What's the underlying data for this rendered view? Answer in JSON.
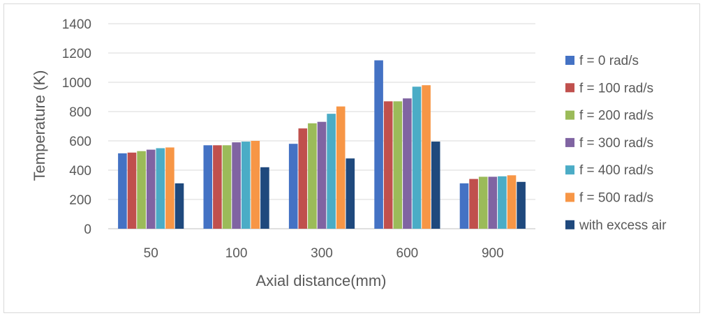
{
  "chart_data": {
    "type": "bar",
    "title": "",
    "xlabel": "Axial distance(mm)",
    "ylabel": "Temperature (K)",
    "ylim": [
      0,
      1400
    ],
    "yticks": [
      "0",
      "200",
      "400",
      "600",
      "800",
      "1000",
      "1200",
      "1400"
    ],
    "grid": true,
    "legend_position": "right",
    "categories": [
      "50",
      "100",
      "300",
      "600",
      "900"
    ],
    "series": [
      {
        "name": "f = 0 rad/s",
        "color": "#4472c4",
        "values": [
          515,
          570,
          580,
          1150,
          310
        ]
      },
      {
        "name": "f = 100 rad/s",
        "color": "#c0504d",
        "values": [
          520,
          570,
          685,
          870,
          340
        ]
      },
      {
        "name": "f = 200 rad/s",
        "color": "#9bbb59",
        "values": [
          530,
          570,
          720,
          870,
          355
        ]
      },
      {
        "name": "f = 300 rad/s",
        "color": "#8064a2",
        "values": [
          540,
          590,
          730,
          890,
          355
        ]
      },
      {
        "name": "f = 400 rad/s",
        "color": "#4bacc6",
        "values": [
          550,
          595,
          785,
          970,
          358
        ]
      },
      {
        "name": "f = 500 rad/s",
        "color": "#f79646",
        "values": [
          555,
          600,
          835,
          980,
          365
        ]
      },
      {
        "name": "with excess air",
        "color": "#1f497d",
        "values": [
          310,
          420,
          480,
          595,
          320
        ]
      }
    ]
  }
}
